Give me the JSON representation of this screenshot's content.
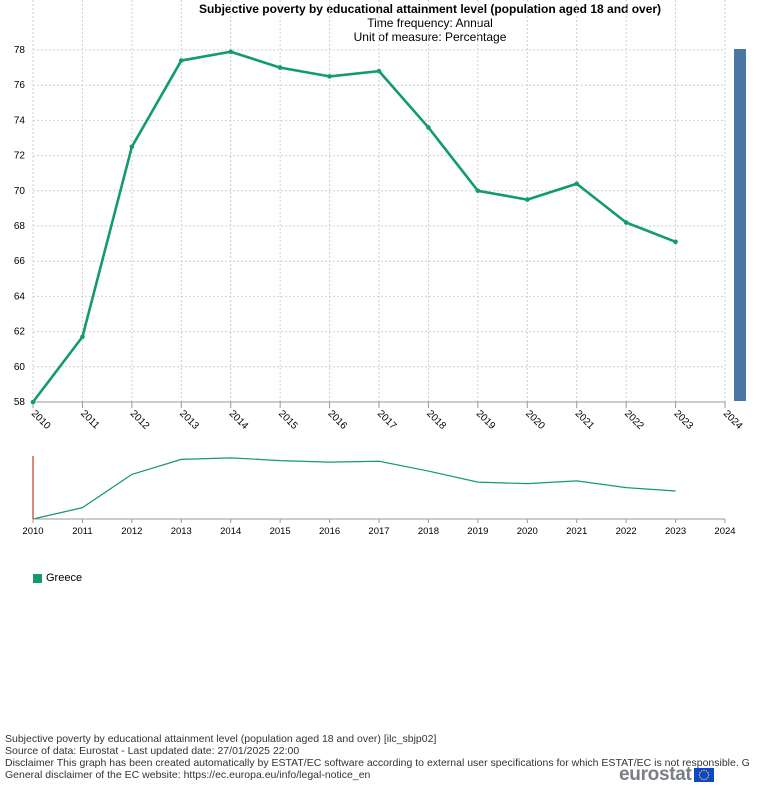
{
  "chart_data": {
    "type": "line",
    "title": "Subjective poverty by educational attainment level (population aged 18 and over)",
    "subtitle_lines": [
      "Time frequency:  Annual",
      "Unit of measure:  Percentage"
    ],
    "x": [
      "2010",
      "2011",
      "2012",
      "2013",
      "2014",
      "2015",
      "2016",
      "2017",
      "2018",
      "2019",
      "2020",
      "2021",
      "2022",
      "2023",
      "2024"
    ],
    "series": [
      {
        "name": "Greece",
        "color": "#139a6f",
        "values": [
          58.0,
          61.7,
          72.5,
          77.4,
          77.9,
          77.0,
          76.5,
          76.8,
          73.6,
          70.0,
          69.5,
          70.4,
          68.2,
          67.1,
          null
        ]
      }
    ],
    "ylim": [
      58,
      78
    ],
    "yticks": [
      "58",
      "60",
      "62",
      "64",
      "66",
      "68",
      "70",
      "72",
      "74",
      "76",
      "78"
    ],
    "grid": true,
    "legend_position": "bottom-left"
  },
  "navigator": {
    "x_labels": [
      "2010",
      "2011",
      "2012",
      "2013",
      "2014",
      "2015",
      "2016",
      "2017",
      "2018",
      "2019",
      "2020",
      "2021",
      "2022",
      "2023",
      "2024"
    ]
  },
  "footer": {
    "line1": "Subjective poverty by educational attainment level (population aged 18 and over) [ilc_sbjp02]",
    "line2": "Source of data: Eurostat - Last updated date: 27/01/2025 22:00",
    "line3": "Disclaimer This graph has been created automatically by ESTAT/EC software according to external user specifications for which ESTAT/EC is not responsible. G",
    "line4": "General disclaimer of the EC website: https://ec.europa.eu/info/legal-notice_en"
  },
  "logo": {
    "text": "eurostat"
  }
}
